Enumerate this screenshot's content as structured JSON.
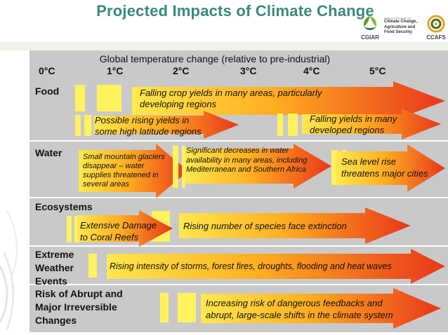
{
  "title": "Projected Impacts of Climate Change",
  "logos": {
    "cgiar": "CGIAR",
    "program_small_1": "RESEARCH PROGRAM ON",
    "program_line1": "Climate Change,",
    "program_line2": "Agriculture and",
    "program_line3": "Food Security",
    "ccafs": "CCAFS"
  },
  "axis": {
    "title": "Global temperature change (relative to pre-industrial)",
    "ticks": [
      "0°C",
      "1°C",
      "2°C",
      "3°C",
      "4°C",
      "5°C"
    ]
  },
  "rows": {
    "food": "Food",
    "water": "Water",
    "ecosystems": "Ecosystems",
    "extreme_1": "Extreme",
    "extreme_2": "Weather",
    "extreme_3": "Events",
    "abrupt_1": "Risk of Abrupt and",
    "abrupt_2": "Major Irreversible",
    "abrupt_3": "Changes"
  },
  "impacts": {
    "food_falling_1": "Falling crop yields in many areas, particularly",
    "food_falling_2": "developing regions",
    "food_rising_1": "Possible rising yields in",
    "food_rising_2": "some high latitude regions",
    "food_developed_1": "Falling yields in many",
    "food_developed_2": "developed regions",
    "water_glaciers_1": "Small mountain glaciers",
    "water_glaciers_2": "disappear – water",
    "water_glaciers_3": "supplies threatened in",
    "water_glaciers_4": "several areas",
    "water_decrease_1": "Significant decreases in water",
    "water_decrease_2": "availability in many areas, including",
    "water_decrease_3": "Mediterranean and Southern Africa",
    "water_sealevel_1": "Sea level rise",
    "water_sealevel_2": "threatens major cities",
    "eco_coral_1": "Extensive Damage",
    "eco_coral_2": "to Coral Reefs",
    "eco_species": "Rising number of species face extinction",
    "extreme_storms": "Rising intensity of storms, forest fires, droughts, flooding and heat waves",
    "abrupt_feedbacks_1": "Increasing risk of dangerous feedbacks and",
    "abrupt_feedbacks_2": "abrupt, large-scale shifts in the climate system"
  },
  "colors": {
    "title": "#3a8a7a",
    "panel": "#c9c9c9",
    "arrow_start": "#ffe34a",
    "arrow_mid": "#ffae22",
    "arrow_end": "#e8361a",
    "bar_yellow": "#fff25e"
  }
}
